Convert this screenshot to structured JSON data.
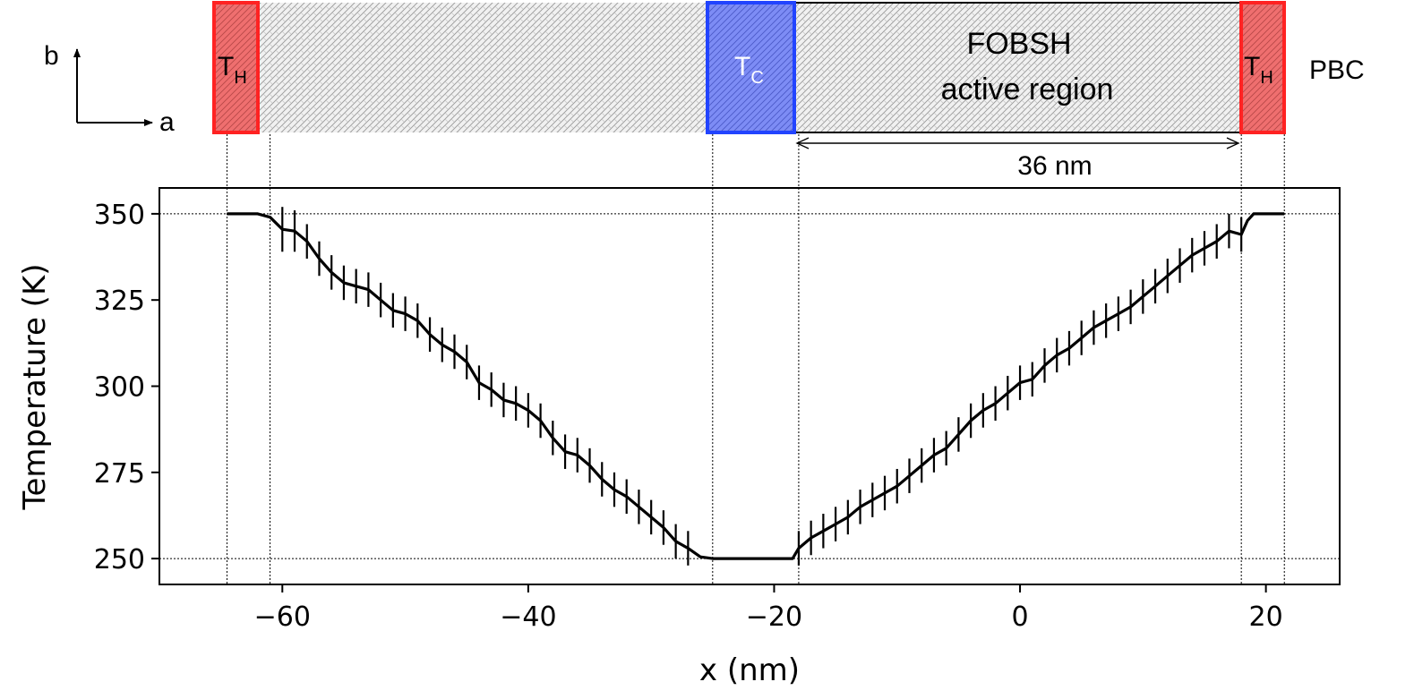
{
  "schematic": {
    "axis_b": "b",
    "axis_a": "a",
    "hot_left": {
      "main": "T",
      "sub": "H",
      "color": "#ff3333"
    },
    "cold": {
      "main": "T",
      "sub": "C",
      "color": "#3355ff"
    },
    "hot_right": {
      "main": "T",
      "sub": "H",
      "color": "#ff3333"
    },
    "active_line1": "FOBSH",
    "active_line2": "active region",
    "dimension_label": "36 nm",
    "pbc_label": "PBC"
  },
  "chart_data": {
    "type": "line",
    "xlabel": "x (nm)",
    "ylabel": "Temperature (K)",
    "xlim": [
      -70,
      26
    ],
    "ylim": [
      242.5,
      357.5
    ],
    "xticks": [
      -60,
      -40,
      -20,
      0,
      20
    ],
    "yticks": [
      250,
      275,
      300,
      325,
      350
    ],
    "xtick_labels": [
      "−60",
      "−40",
      "−20",
      "0",
      "20"
    ],
    "ytick_labels": [
      "250",
      "275",
      "300",
      "325",
      "350"
    ],
    "reference_lines_x": [
      -64.5,
      -61,
      -25,
      -18,
      18,
      21.5
    ],
    "reference_lines_y": [
      250,
      350
    ],
    "line_color": "#000000",
    "series": [
      {
        "x": [
          -64.5,
          -63,
          -62,
          -61,
          -60,
          -59,
          -58,
          -57,
          -56,
          -55,
          -54,
          -53,
          -52,
          -51,
          -50,
          -49,
          -48,
          -47,
          -46,
          -45,
          -44,
          -43,
          -42,
          -41,
          -40,
          -39,
          -38,
          -37,
          -36,
          -35,
          -34,
          -33,
          -32,
          -31,
          -30,
          -29,
          -28,
          -27,
          -26,
          -25,
          -24,
          -23,
          -22,
          -21,
          -20,
          -19,
          -18.5,
          -18,
          -17,
          -16,
          -15,
          -14,
          -13,
          -12,
          -11,
          -10,
          -9,
          -8,
          -7,
          -6,
          -5,
          -4,
          -3,
          -2,
          -1,
          0,
          1,
          2,
          3,
          4,
          5,
          6,
          7,
          8,
          9,
          10,
          11,
          12,
          13,
          14,
          15,
          16,
          17,
          18,
          18.5,
          19,
          20,
          21.5
        ],
        "y": [
          350,
          350,
          350,
          349,
          345.5,
          345,
          342,
          337,
          333,
          330,
          329,
          328,
          325,
          322,
          321,
          319,
          315,
          312,
          310,
          307,
          301,
          299,
          296,
          295,
          293,
          290,
          285,
          281,
          280,
          277,
          273,
          270,
          268,
          265,
          262,
          259,
          255,
          253,
          250.5,
          250,
          250,
          250,
          250,
          250,
          250,
          250,
          250,
          253,
          256,
          258,
          260,
          262,
          265,
          267,
          269,
          271,
          274,
          277,
          280,
          282,
          286,
          290,
          293,
          295,
          298,
          301,
          302,
          306,
          309,
          311,
          314,
          317,
          319,
          321,
          323,
          326,
          329,
          332,
          335,
          338,
          340,
          342,
          345,
          344,
          348,
          350,
          350,
          350
        ],
        "errors": [
          0,
          0,
          0,
          0,
          6.5,
          6,
          5,
          5,
          5,
          5,
          5,
          5,
          5,
          5,
          5,
          5,
          5,
          5,
          5,
          5,
          5,
          5,
          5,
          5,
          5,
          5,
          5,
          5,
          5,
          5,
          5,
          5,
          5,
          5,
          5,
          5,
          5,
          5,
          0,
          0,
          0,
          0,
          0,
          0,
          0,
          0,
          0,
          5,
          5,
          5,
          5,
          5,
          5,
          5,
          5,
          5,
          5,
          5,
          5,
          5,
          5,
          5,
          5,
          5,
          5,
          5,
          5,
          5,
          5,
          5,
          5,
          5,
          5,
          5,
          5,
          5,
          5,
          5,
          5,
          5,
          5,
          5,
          5,
          5,
          0,
          0,
          0,
          0
        ]
      }
    ]
  }
}
